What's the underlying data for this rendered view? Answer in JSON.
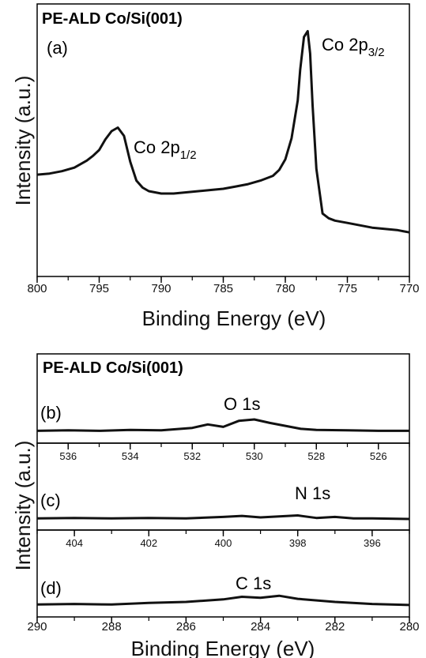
{
  "chart_data": [
    {
      "id": "a",
      "type": "line",
      "panel_label": "(a)",
      "sample_title": "PE-ALD Co/Si(001)",
      "xlabel": "Binding Energy (eV)",
      "ylabel": "Intensity (a.u.)",
      "xlim": [
        800,
        770
      ],
      "x_reversed": true,
      "ylim": [
        0,
        1
      ],
      "x_ticks": [
        800,
        795,
        790,
        785,
        780,
        775,
        770
      ],
      "annotations": [
        {
          "main": "Co 2p",
          "sub": "1/2",
          "x": 793.5,
          "y": 0.56
        },
        {
          "main": "Co 2p",
          "sub": "3/2",
          "x": 778.2,
          "y": 0.95
        }
      ],
      "series": [
        {
          "x": [
            800,
            799,
            798,
            797,
            796,
            795.5,
            795,
            794.5,
            794,
            793.5,
            793,
            792.5,
            792,
            791.5,
            791,
            790,
            789,
            788,
            787,
            786,
            785,
            784,
            783,
            782,
            781,
            780.5,
            780,
            779.5,
            779,
            778.8,
            778.5,
            778.2,
            778,
            777.8,
            777.5,
            777,
            776.5,
            776,
            775,
            774,
            773,
            772,
            771,
            770
          ],
          "y": [
            0.325,
            0.33,
            0.34,
            0.355,
            0.385,
            0.405,
            0.43,
            0.475,
            0.51,
            0.525,
            0.49,
            0.38,
            0.3,
            0.27,
            0.255,
            0.245,
            0.245,
            0.25,
            0.255,
            0.26,
            0.265,
            0.275,
            0.285,
            0.3,
            0.32,
            0.345,
            0.39,
            0.48,
            0.64,
            0.77,
            0.91,
            0.935,
            0.84,
            0.62,
            0.35,
            0.16,
            0.14,
            0.13,
            0.12,
            0.11,
            0.1,
            0.095,
            0.09,
            0.08
          ]
        }
      ]
    },
    {
      "id": "b",
      "type": "line",
      "panel_label": "(b)",
      "sample_title": "PE-ALD Co/Si(001)",
      "peak_label": "O 1s",
      "xlim": [
        537,
        525
      ],
      "x_reversed": true,
      "ylim": [
        0,
        1
      ],
      "x_ticks": [
        536,
        534,
        532,
        530,
        528,
        526
      ],
      "series": [
        {
          "x": [
            537,
            536,
            535,
            534,
            533,
            532,
            531.5,
            531,
            530.5,
            530,
            529.5,
            529,
            528.5,
            528,
            527,
            526,
            525
          ],
          "y": [
            0.12,
            0.13,
            0.12,
            0.14,
            0.13,
            0.18,
            0.25,
            0.2,
            0.32,
            0.35,
            0.28,
            0.22,
            0.16,
            0.14,
            0.13,
            0.12,
            0.12
          ]
        }
      ]
    },
    {
      "id": "c",
      "type": "line",
      "panel_label": "(c)",
      "peak_label": "N 1s",
      "ylabel": "Intensity (a.u.)",
      "xlim": [
        405,
        395
      ],
      "x_reversed": true,
      "ylim": [
        0,
        1
      ],
      "x_ticks": [
        404,
        402,
        400,
        398,
        396
      ],
      "series": [
        {
          "x": [
            405,
            404,
            403,
            402,
            401,
            400,
            399.5,
            399,
            398.5,
            398,
            397.5,
            397,
            396.5,
            396,
            395
          ],
          "y": [
            0.12,
            0.13,
            0.12,
            0.13,
            0.12,
            0.15,
            0.17,
            0.14,
            0.16,
            0.18,
            0.13,
            0.15,
            0.12,
            0.12,
            0.11
          ]
        }
      ]
    },
    {
      "id": "d",
      "type": "line",
      "panel_label": "(d)",
      "peak_label": "C 1s",
      "xlabel": "Binding Energy (eV)",
      "xlim": [
        290,
        280
      ],
      "x_reversed": true,
      "ylim": [
        0,
        1
      ],
      "x_ticks": [
        290,
        288,
        286,
        284,
        282,
        280
      ],
      "series": [
        {
          "x": [
            290,
            289,
            288,
            287,
            286,
            285,
            284.5,
            284,
            283.5,
            283,
            282,
            281,
            280
          ],
          "y": [
            0.15,
            0.16,
            0.15,
            0.18,
            0.2,
            0.25,
            0.3,
            0.28,
            0.32,
            0.26,
            0.2,
            0.16,
            0.14
          ]
        }
      ]
    }
  ]
}
